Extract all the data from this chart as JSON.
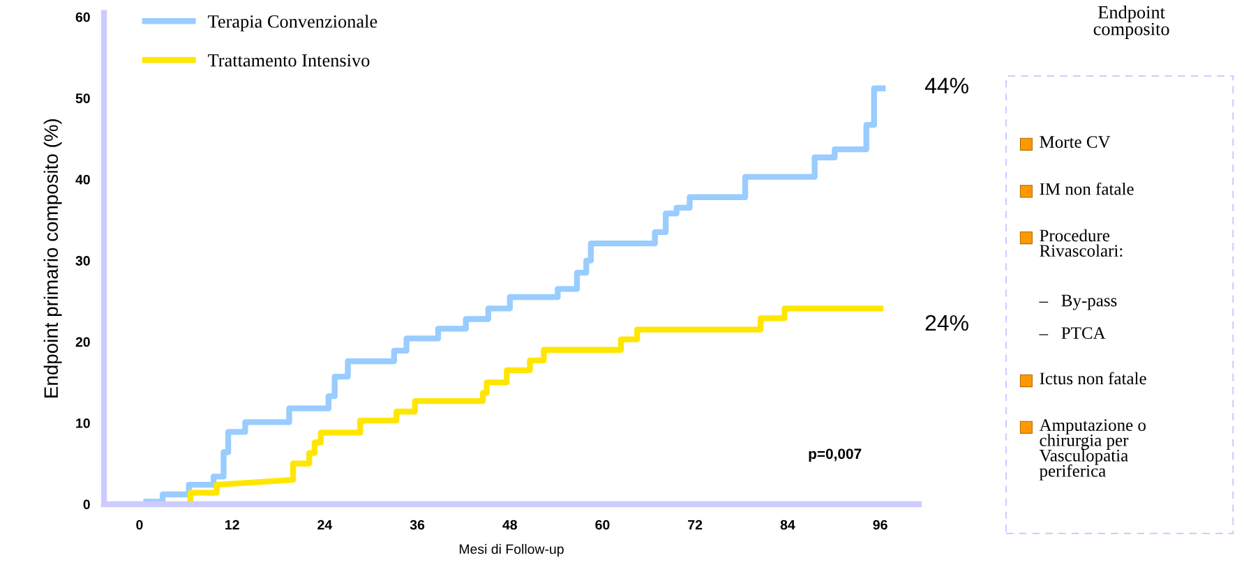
{
  "chart_data": [
    {
      "type": "line",
      "xlabel": "Mesi di Follow-up",
      "ylabel": "Endpoint primario composito (%)",
      "xlim": [
        -4.6,
        101
      ],
      "ylim": [
        0,
        60.5
      ],
      "xticks": [
        0,
        12,
        24,
        36,
        48,
        60,
        72,
        84,
        96
      ],
      "yticks": [
        0,
        10,
        20,
        30,
        40,
        50,
        60
      ],
      "grid": false,
      "legend": "top left",
      "marker": "none",
      "line_style": "solid",
      "series": [
        {
          "name": "Terapia Convenzionale",
          "type": "step",
          "color": "#99ccff",
          "x": [
            0.5,
            3.0,
            6.4,
            9.6,
            10.9,
            11.5,
            13.7,
            19.4,
            24.5,
            25.3,
            27.0,
            33.0,
            34.6,
            38.7,
            42.3,
            45.2,
            48.0,
            54.2,
            56.7,
            57.9,
            58.5,
            66.8,
            68.2,
            69.6,
            71.3,
            78.5,
            87.5,
            90.1,
            94.2,
            95.2,
            96.7
          ],
          "values": [
            0.3,
            1.2,
            2.4,
            3.4,
            6.4,
            8.9,
            10.1,
            11.8,
            13.3,
            15.7,
            17.6,
            18.9,
            20.4,
            21.6,
            22.8,
            24.1,
            25.5,
            26.5,
            28.5,
            30.0,
            32.1,
            33.5,
            35.8,
            36.5,
            37.8,
            40.3,
            42.7,
            43.7,
            46.7,
            51.2,
            51.2
          ]
        },
        {
          "name": "Trattamento Intensivo",
          "type": "line",
          "color": "#ffe600",
          "x": [
            6.6,
            6.6,
            10,
            10,
            19.9,
            19.9,
            22,
            22,
            22.7,
            22.7,
            23.5,
            23.5,
            28.6,
            28.6,
            33.3,
            33.3,
            35.7,
            35.7,
            44.5,
            44.5,
            45,
            45,
            47.6,
            47.6,
            50.6,
            50.6,
            52.4,
            52.4,
            62.4,
            62.4,
            64.5,
            64.5,
            80.5,
            80.5,
            83.6,
            83.6,
            96.4
          ],
          "values": [
            0,
            1.4,
            1.4,
            2.4,
            3.0,
            5.0,
            5.0,
            6.3,
            6.3,
            7.6,
            7.6,
            8.8,
            8.8,
            10.3,
            10.3,
            11.4,
            11.4,
            12.7,
            12.7,
            13.7,
            13.7,
            15.0,
            15.0,
            16.5,
            16.5,
            17.7,
            17.7,
            19.0,
            19.0,
            20.3,
            20.3,
            21.5,
            21.5,
            22.9,
            22.9,
            24.1,
            24.1
          ]
        }
      ],
      "annotations": [
        "44%",
        "24%",
        "p=0,007"
      ]
    },
    {
      "type": "other",
      "title": "Endpoint\ncomposito",
      "annotations": [
        "Morte CV",
        "IM non fatale",
        "Procedure\nRivascolari:",
        "–   By-pass",
        "–   PTCA",
        "Ictus non fatale",
        "Amputazione o\nchirurgia per\nVasculopatia\nperiferica"
      ]
    }
  ]
}
